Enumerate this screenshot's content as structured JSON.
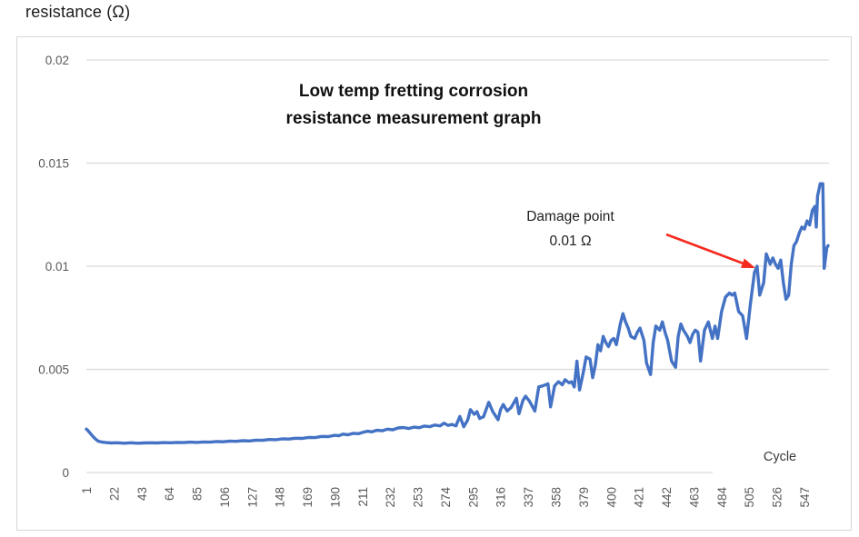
{
  "colors": {
    "series": "#4472C4",
    "grid": "#D9D9D9",
    "axis_text": "#595959",
    "arrow": "#F52A1E",
    "border": "#D7D7D7"
  },
  "chart_data": {
    "type": "line",
    "title": "Low temp fretting corrosion resistance measurement graph",
    "title_lines": [
      "Low temp fretting corrosion",
      "resistance measurement graph"
    ],
    "ylabel": "resistance (Ω)",
    "xlabel": "Cycle",
    "ylim": [
      0,
      0.02
    ],
    "yticks": [
      0,
      0.005,
      0.01,
      0.015,
      0.02
    ],
    "ytick_labels": [
      "0",
      "0.005",
      "0.01",
      "0.015",
      "0.02"
    ],
    "xtick_labels": [
      "1",
      "22",
      "43",
      "64",
      "85",
      "106",
      "127",
      "148",
      "169",
      "190",
      "211",
      "232",
      "253",
      "274",
      "295",
      "316",
      "337",
      "358",
      "379",
      "400",
      "421",
      "442",
      "463",
      "484",
      "505",
      "526",
      "547"
    ],
    "xtick_step": 21,
    "x_max_cycle": 565,
    "grid": true,
    "legend": false,
    "annotation": {
      "lines": [
        "Damage point",
        "0.01 Ω"
      ],
      "arrow_from": [
        733,
        258
      ],
      "arrow_to": [
        831,
        295
      ]
    },
    "points": [
      [
        1,
        0.0021
      ],
      [
        2,
        0.00205
      ],
      [
        4,
        0.0019
      ],
      [
        6,
        0.00175
      ],
      [
        8,
        0.00162
      ],
      [
        10,
        0.00152
      ],
      [
        13,
        0.00147
      ],
      [
        16,
        0.00145
      ],
      [
        20,
        0.00143
      ],
      [
        25,
        0.00144
      ],
      [
        30,
        0.00142
      ],
      [
        35,
        0.00144
      ],
      [
        40,
        0.00142
      ],
      [
        45,
        0.00143
      ],
      [
        50,
        0.00144
      ],
      [
        55,
        0.00143
      ],
      [
        60,
        0.00145
      ],
      [
        65,
        0.00144
      ],
      [
        70,
        0.00146
      ],
      [
        75,
        0.00145
      ],
      [
        80,
        0.00147
      ],
      [
        85,
        0.00146
      ],
      [
        90,
        0.00148
      ],
      [
        95,
        0.00147
      ],
      [
        100,
        0.0015
      ],
      [
        105,
        0.00149
      ],
      [
        110,
        0.00152
      ],
      [
        115,
        0.00151
      ],
      [
        120,
        0.00154
      ],
      [
        125,
        0.00153
      ],
      [
        130,
        0.00157
      ],
      [
        135,
        0.00156
      ],
      [
        140,
        0.0016
      ],
      [
        145,
        0.00159
      ],
      [
        150,
        0.00163
      ],
      [
        155,
        0.00162
      ],
      [
        160,
        0.00166
      ],
      [
        165,
        0.00165
      ],
      [
        170,
        0.0017
      ],
      [
        175,
        0.00169
      ],
      [
        180,
        0.00175
      ],
      [
        185,
        0.00174
      ],
      [
        190,
        0.0018
      ],
      [
        193,
        0.00178
      ],
      [
        196,
        0.00186
      ],
      [
        200,
        0.00183
      ],
      [
        204,
        0.0019
      ],
      [
        208,
        0.00188
      ],
      [
        212,
        0.00196
      ],
      [
        215,
        0.002
      ],
      [
        218,
        0.00197
      ],
      [
        222,
        0.00205
      ],
      [
        226,
        0.00202
      ],
      [
        230,
        0.0021
      ],
      [
        234,
        0.00207
      ],
      [
        238,
        0.00216
      ],
      [
        242,
        0.00218
      ],
      [
        246,
        0.00213
      ],
      [
        250,
        0.0022
      ],
      [
        254,
        0.00217
      ],
      [
        258,
        0.00225
      ],
      [
        262,
        0.00222
      ],
      [
        266,
        0.0023
      ],
      [
        270,
        0.00226
      ],
      [
        273,
        0.00239
      ],
      [
        276,
        0.00228
      ],
      [
        279,
        0.00233
      ],
      [
        282,
        0.00226
      ],
      [
        285,
        0.00272
      ],
      [
        288,
        0.00222
      ],
      [
        291,
        0.00255
      ],
      [
        293,
        0.00305
      ],
      [
        296,
        0.00282
      ],
      [
        298,
        0.00295
      ],
      [
        300,
        0.00262
      ],
      [
        303,
        0.0027
      ],
      [
        307,
        0.0034
      ],
      [
        310,
        0.00295
      ],
      [
        314,
        0.00256
      ],
      [
        316,
        0.00305
      ],
      [
        318,
        0.0033
      ],
      [
        321,
        0.00298
      ],
      [
        324,
        0.00315
      ],
      [
        328,
        0.0036
      ],
      [
        330,
        0.00285
      ],
      [
        333,
        0.0035
      ],
      [
        335,
        0.0037
      ],
      [
        338,
        0.00345
      ],
      [
        342,
        0.00298
      ],
      [
        345,
        0.00415
      ],
      [
        348,
        0.0042
      ],
      [
        352,
        0.0043
      ],
      [
        354,
        0.00318
      ],
      [
        357,
        0.0042
      ],
      [
        360,
        0.0044
      ],
      [
        363,
        0.00425
      ],
      [
        365,
        0.0045
      ],
      [
        368,
        0.00435
      ],
      [
        370,
        0.0044
      ],
      [
        372,
        0.00415
      ],
      [
        374,
        0.0054
      ],
      [
        376,
        0.004
      ],
      [
        379,
        0.0049
      ],
      [
        381,
        0.0056
      ],
      [
        384,
        0.0055
      ],
      [
        386,
        0.0046
      ],
      [
        388,
        0.0052
      ],
      [
        390,
        0.0062
      ],
      [
        392,
        0.0059
      ],
      [
        394,
        0.0066
      ],
      [
        396,
        0.0063
      ],
      [
        398,
        0.0061
      ],
      [
        400,
        0.0064
      ],
      [
        402,
        0.0065
      ],
      [
        404,
        0.0062
      ],
      [
        407,
        0.0072
      ],
      [
        409,
        0.0077
      ],
      [
        411,
        0.0073
      ],
      [
        413,
        0.007
      ],
      [
        415,
        0.0066
      ],
      [
        418,
        0.0065
      ],
      [
        420,
        0.0068
      ],
      [
        422,
        0.007
      ],
      [
        425,
        0.0064
      ],
      [
        427,
        0.0053
      ],
      [
        430,
        0.00475
      ],
      [
        432,
        0.0063
      ],
      [
        434,
        0.0071
      ],
      [
        437,
        0.0069
      ],
      [
        439,
        0.0073
      ],
      [
        441,
        0.0068
      ],
      [
        443,
        0.0064
      ],
      [
        446,
        0.0054
      ],
      [
        449,
        0.0051
      ],
      [
        451,
        0.0066
      ],
      [
        453,
        0.0072
      ],
      [
        455,
        0.0069
      ],
      [
        458,
        0.0066
      ],
      [
        460,
        0.0063
      ],
      [
        462,
        0.0067
      ],
      [
        464,
        0.0069
      ],
      [
        466,
        0.0068
      ],
      [
        468,
        0.0054
      ],
      [
        471,
        0.0069
      ],
      [
        474,
        0.0073
      ],
      [
        477,
        0.0065
      ],
      [
        479,
        0.0071
      ],
      [
        481,
        0.0065
      ],
      [
        484,
        0.0078
      ],
      [
        487,
        0.0085
      ],
      [
        490,
        0.0087
      ],
      [
        492,
        0.0086
      ],
      [
        494,
        0.0087
      ],
      [
        497,
        0.0078
      ],
      [
        500,
        0.0076
      ],
      [
        503,
        0.0065
      ],
      [
        506,
        0.0082
      ],
      [
        509,
        0.0097
      ],
      [
        511,
        0.01
      ],
      [
        513,
        0.0086
      ],
      [
        516,
        0.0092
      ],
      [
        518,
        0.0106
      ],
      [
        521,
        0.0101
      ],
      [
        523,
        0.0104
      ],
      [
        525,
        0.0101
      ],
      [
        527,
        0.0099
      ],
      [
        529,
        0.0103
      ],
      [
        531,
        0.0092
      ],
      [
        533,
        0.0084
      ],
      [
        535,
        0.0086
      ],
      [
        537,
        0.0101
      ],
      [
        539,
        0.011
      ],
      [
        541,
        0.0112
      ],
      [
        543,
        0.0116
      ],
      [
        545,
        0.0119
      ],
      [
        547,
        0.0118
      ],
      [
        549,
        0.0122
      ],
      [
        551,
        0.012
      ],
      [
        553,
        0.0127
      ],
      [
        555,
        0.0129
      ],
      [
        556,
        0.0119
      ],
      [
        557,
        0.0134
      ],
      [
        559,
        0.014
      ],
      [
        561,
        0.014
      ],
      [
        562,
        0.0099
      ],
      [
        564,
        0.0109
      ],
      [
        565,
        0.011
      ]
    ]
  }
}
